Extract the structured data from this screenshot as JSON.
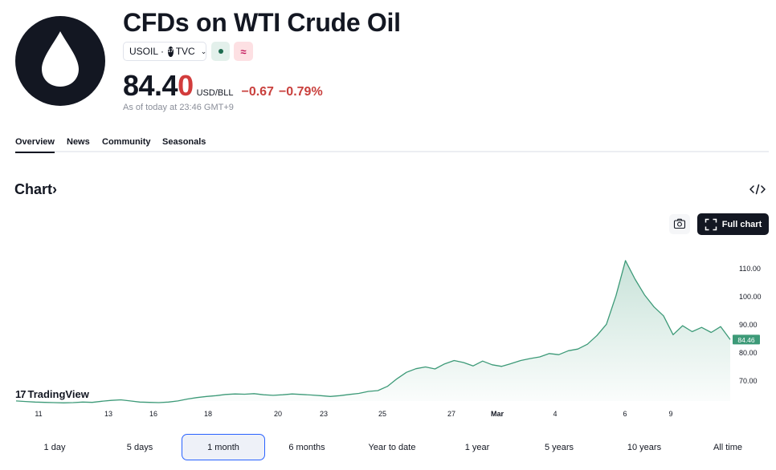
{
  "header": {
    "title": "CFDs on WTI Crude Oil",
    "symbol": "USOIL",
    "separator": "·",
    "exchange": "TVC",
    "exchange_badge": "17",
    "delay_glyph": "≈",
    "logo_icon": "oil-drop-icon"
  },
  "quote": {
    "price_main": "84.4",
    "price_last_digit": "0",
    "currency": "USD/BLL",
    "change": "−0.67",
    "change_pct": "−0.79%",
    "as_of": "As of today at 23:46 GMT+9"
  },
  "tabs": [
    {
      "label": "Overview"
    },
    {
      "label": "News"
    },
    {
      "label": "Community"
    },
    {
      "label": "Seasonals"
    }
  ],
  "chart_section": {
    "heading": "Chart",
    "heading_arrow": "›",
    "full_chart_label": "Full chart",
    "brand": "TradingView",
    "brand_mark": "17"
  },
  "chart_data": {
    "type": "area",
    "color": "#3d9a78",
    "y_ticks": [
      "110.00",
      "100.00",
      "90.00",
      "80.00",
      "70.00"
    ],
    "y_tick_values": [
      110,
      100,
      90,
      80,
      70
    ],
    "x_ticks": [
      "11",
      "13",
      "16",
      "18",
      "20",
      "23",
      "25",
      "27",
      "Mar",
      "4",
      "6",
      "9"
    ],
    "last_price_label": "84.46",
    "last_price": 84.46,
    "series": [
      {
        "values": [
          62.6,
          62.4,
          62.2,
          62.1,
          62.0,
          61.9,
          62.0,
          62.2,
          62.1,
          62.5,
          62.8,
          63.0,
          62.6,
          62.2,
          62.1,
          62.0,
          62.2,
          62.6,
          63.3,
          63.8,
          64.2,
          64.5,
          64.9,
          65.1,
          65.0,
          65.2,
          64.8,
          64.6,
          64.8,
          65.1,
          64.9,
          64.7,
          64.5,
          64.2,
          64.5,
          64.9,
          65.3,
          66.0,
          66.3,
          67.8,
          70.5,
          72.8,
          74.1,
          74.7,
          74.0,
          75.8,
          77.0,
          76.3,
          75.1,
          76.8,
          75.5,
          74.9,
          75.9,
          77.0,
          77.7,
          78.3,
          79.5,
          79.1,
          80.5,
          81.1,
          82.8,
          85.9,
          89.9,
          100.1,
          112.6,
          106.0,
          100.4,
          96.1,
          92.9,
          86.2,
          89.4,
          87.3,
          88.8,
          87.0,
          89.1,
          84.46
        ]
      }
    ]
  },
  "ranges": [
    {
      "label": "1 day"
    },
    {
      "label": "5 days"
    },
    {
      "label": "1 month",
      "active": true
    },
    {
      "label": "6 months"
    },
    {
      "label": "Year to date"
    },
    {
      "label": "1 year"
    },
    {
      "label": "5 years"
    },
    {
      "label": "10 years"
    },
    {
      "label": "All time"
    }
  ]
}
